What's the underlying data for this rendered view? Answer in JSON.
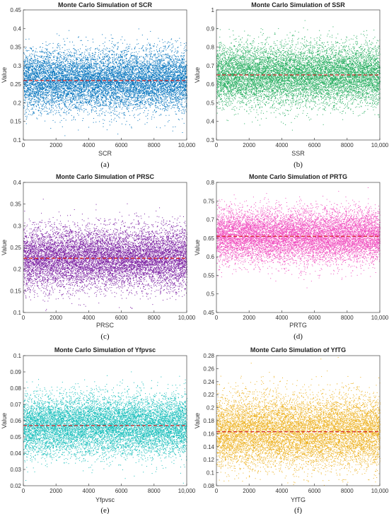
{
  "chart_data": [
    {
      "type": "scatter",
      "title": "Monte Carlo Simulation of SCR",
      "xlabel": "SCR",
      "ylabel": "Value",
      "caption": "(a)",
      "xlim": [
        0,
        10000
      ],
      "ylim": [
        0.1,
        0.45
      ],
      "xticks": [
        "0",
        "2000",
        "4000",
        "6000",
        "8000",
        "10,000"
      ],
      "yticks": [
        "0.1",
        "0.15",
        "0.2",
        "0.25",
        "0.3",
        "0.35",
        "0.4",
        "0.45"
      ],
      "color": "#0072BD",
      "mean": 0.26,
      "sd": 0.04,
      "n_points": 10000,
      "mean_line_color": "#d62728"
    },
    {
      "type": "scatter",
      "title": "Monte Carlo Simulation of SSR",
      "xlabel": "SSR",
      "ylabel": "Value",
      "caption": "(b)",
      "xlim": [
        0,
        10000
      ],
      "ylim": [
        0.3,
        1.0
      ],
      "xticks": [
        "0",
        "2000",
        "4000",
        "6000",
        "8000",
        "10,000"
      ],
      "yticks": [
        "0.3",
        "0.4",
        "0.5",
        "0.6",
        "0.7",
        "0.8",
        "0.9",
        "1"
      ],
      "color": "#27AE60",
      "mean": 0.65,
      "sd": 0.08,
      "n_points": 10000,
      "mean_line_color": "#d62728"
    },
    {
      "type": "scatter",
      "title": "Monte Carlo Simulation of PRSC",
      "xlabel": "PRSC",
      "ylabel": "Value",
      "caption": "(c)",
      "xlim": [
        0,
        10000
      ],
      "ylim": [
        0.1,
        0.4
      ],
      "xticks": [
        "0",
        "2000",
        "4000",
        "6000",
        "8000",
        "10,000"
      ],
      "yticks": [
        "0.1",
        "0.15",
        "0.2",
        "0.25",
        "0.3",
        "0.35",
        "0.4"
      ],
      "color": "#7B1FA2",
      "mean": 0.225,
      "sd": 0.035,
      "n_points": 10000,
      "mean_line_color": "#d62728"
    },
    {
      "type": "scatter",
      "title": "Monte Carlo Simulation of PRTG",
      "xlabel": "PRTG",
      "ylabel": "Value",
      "caption": "(d)",
      "xlim": [
        0,
        10000
      ],
      "ylim": [
        0.45,
        0.8
      ],
      "xticks": [
        "0",
        "2000",
        "4000",
        "6000",
        "8000",
        "10,000"
      ],
      "yticks": [
        "0.45",
        "0.5",
        "0.55",
        "0.6",
        "0.65",
        "0.7",
        "0.75",
        "0.8"
      ],
      "color": "#F04FBF",
      "mean": 0.655,
      "sd": 0.035,
      "n_points": 10000,
      "mean_line_color": "#d62728"
    },
    {
      "type": "scatter",
      "title": "Monte Carlo Simulation of Yfpvsc",
      "xlabel": "Yfpvsc",
      "ylabel": "Value",
      "caption": "(e)",
      "xlim": [
        0,
        10000
      ],
      "ylim": [
        0.02,
        0.1
      ],
      "xticks": [
        "0",
        "2000",
        "4000",
        "6000",
        "8000",
        "10,000"
      ],
      "yticks": [
        "0.02",
        "0.03",
        "0.04",
        "0.05",
        "0.06",
        "0.07",
        "0.08",
        "0.09",
        "0.1"
      ],
      "color": "#17BEBB",
      "mean": 0.057,
      "sd": 0.009,
      "n_points": 10000,
      "mean_line_color": "#d62728"
    },
    {
      "type": "scatter",
      "title": "Monte Carlo Simulation of YfTG",
      "xlabel": "YfTG",
      "ylabel": "Value",
      "caption": "(f)",
      "xlim": [
        0,
        10000
      ],
      "ylim": [
        0.08,
        0.28
      ],
      "xticks": [
        "0",
        "2000",
        "4000",
        "6000",
        "8000",
        "10,000"
      ],
      "yticks": [
        "0.08",
        "0.1",
        "0.12",
        "0.14",
        "0.16",
        "0.18",
        "0.2",
        "0.22",
        "0.24",
        "0.26",
        "0.28"
      ],
      "color": "#EDB120",
      "mean": 0.163,
      "sd": 0.027,
      "n_points": 10000,
      "mean_line_color": "#d62728"
    }
  ]
}
